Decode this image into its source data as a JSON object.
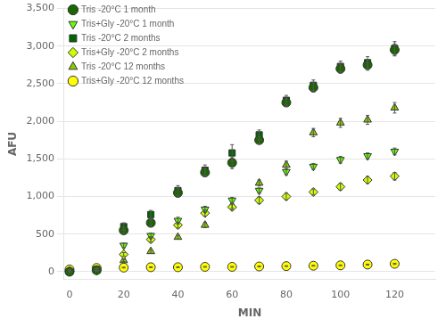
{
  "chart_data": {
    "type": "scatter",
    "xlabel": "MIN",
    "ylabel": "AFU",
    "xlim": [
      -2,
      135
    ],
    "ylim": [
      -100,
      3500
    ],
    "xticks": [
      0,
      20,
      40,
      60,
      80,
      100,
      120
    ],
    "yticks": [
      0,
      500,
      1000,
      1500,
      2000,
      2500,
      3000,
      3500
    ],
    "grid": "y",
    "legend": "upper left",
    "series": [
      {
        "name": "Tris -20°C 1 month",
        "color": "#1a6600",
        "marker": "circle",
        "x": [
          0,
          10,
          20,
          30,
          40,
          50,
          60,
          70,
          80,
          90,
          100,
          110,
          120
        ],
        "values": [
          0,
          20,
          550,
          650,
          1050,
          1320,
          1450,
          1750,
          2250,
          2450,
          2700,
          2750,
          2950
        ],
        "yerr": [
          10,
          10,
          40,
          40,
          60,
          50,
          80,
          50,
          50,
          60,
          60,
          70,
          80
        ]
      },
      {
        "name": "Tris+Gly -20°C 1 month",
        "color": "#66ff00",
        "marker": "triangle-down",
        "x": [
          0,
          10,
          20,
          30,
          40,
          50,
          60,
          70,
          80,
          90,
          100,
          110,
          120
        ],
        "values": [
          0,
          15,
          350,
          480,
          680,
          830,
          950,
          1080,
          1330,
          1400,
          1490,
          1540,
          1600
        ],
        "yerr": [
          5,
          5,
          30,
          35,
          45,
          40,
          40,
          35,
          40,
          40,
          45,
          40,
          45
        ]
      },
      {
        "name": "Tris -20°C 2 months",
        "color": "#006600",
        "marker": "square",
        "x": [
          0,
          10,
          20,
          30,
          40,
          50,
          60,
          70,
          80,
          90,
          100,
          110,
          120
        ],
        "values": [
          0,
          30,
          600,
          760,
          1080,
          1350,
          1580,
          1820,
          2280,
          2480,
          2730,
          2780,
          2970
        ],
        "yerr": [
          10,
          10,
          50,
          55,
          65,
          70,
          110,
          65,
          65,
          70,
          70,
          80,
          90
        ]
      },
      {
        "name": "Tris+Gly -20°C 2 months",
        "color": "#ccff00",
        "marker": "diamond",
        "x": [
          0,
          10,
          20,
          30,
          40,
          50,
          60,
          70,
          80,
          90,
          100,
          110,
          120
        ],
        "values": [
          5,
          20,
          230,
          430,
          620,
          780,
          860,
          950,
          1000,
          1060,
          1130,
          1220,
          1270
        ],
        "yerr": [
          5,
          5,
          25,
          35,
          40,
          40,
          40,
          45,
          45,
          40,
          45,
          45,
          50
        ]
      },
      {
        "name": "Tris -20°C 12 months",
        "color": "#88cc00",
        "marker": "triangle-up",
        "x": [
          0,
          10,
          20,
          30,
          40,
          50,
          60,
          70,
          80,
          90,
          100,
          110,
          120
        ],
        "values": [
          5,
          15,
          150,
          270,
          460,
          620,
          880,
          1180,
          1420,
          1850,
          1980,
          2020,
          2180
        ],
        "yerr": [
          5,
          5,
          15,
          25,
          25,
          35,
          40,
          40,
          50,
          55,
          60,
          60,
          70
        ]
      },
      {
        "name": "Tris+Gly -20°C 12 months",
        "color": "#ffff00",
        "marker": "circle",
        "x": [
          0,
          10,
          20,
          30,
          40,
          50,
          60,
          70,
          80,
          90,
          100,
          110,
          120
        ],
        "values": [
          30,
          50,
          55,
          60,
          60,
          65,
          65,
          70,
          75,
          80,
          85,
          95,
          105
        ],
        "yerr": [
          5,
          5,
          5,
          5,
          5,
          5,
          5,
          5,
          5,
          5,
          5,
          6,
          8
        ]
      }
    ]
  }
}
